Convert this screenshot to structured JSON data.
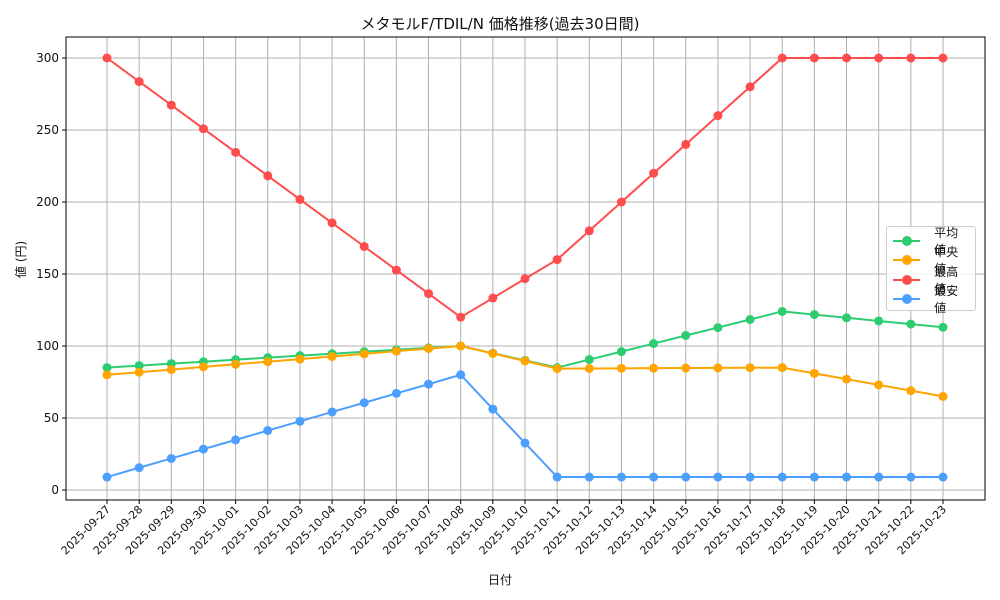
{
  "chart_data": {
    "type": "line",
    "title": "メタモルF/TDIL/N 価格推移(過去30日間)",
    "xlabel": "日付",
    "ylabel": "値 (円)",
    "ylim": [
      -7,
      314
    ],
    "yticks": [
      0,
      50,
      100,
      150,
      200,
      250,
      300
    ],
    "grid": true,
    "legend_position": "center right",
    "categories": [
      "2025-09-27",
      "2025-09-28",
      "2025-09-29",
      "2025-09-30",
      "2025-10-01",
      "2025-10-02",
      "2025-10-03",
      "2025-10-04",
      "2025-10-05",
      "2025-10-06",
      "2025-10-07",
      "2025-10-08",
      "2025-10-09",
      "2025-10-10",
      "2025-10-11",
      "2025-10-12",
      "2025-10-13",
      "2025-10-14",
      "2025-10-15",
      "2025-10-16",
      "2025-10-17",
      "2025-10-18",
      "2025-10-19",
      "2025-10-20",
      "2025-10-21",
      "2025-10-22",
      "2025-10-23"
    ],
    "series": [
      {
        "name": "平均値",
        "color": "#2ecc71",
        "values": [
          85,
          86.4,
          87.8,
          89.1,
          90.5,
          91.9,
          93.3,
          94.6,
          96,
          97.4,
          98.7,
          100,
          95,
          90,
          85,
          90.6,
          96.1,
          101.7,
          107.3,
          112.8,
          118.4,
          124,
          121.8,
          119.6,
          117.4,
          115.2,
          113
        ]
      },
      {
        "name": "中央値",
        "color": "#ffa500",
        "values": [
          80,
          81.8,
          83.6,
          85.5,
          87.3,
          89.1,
          90.9,
          92.7,
          94.5,
          96.4,
          98.2,
          100,
          94.8,
          89.6,
          84.3,
          84.4,
          84.5,
          84.6,
          84.7,
          84.8,
          84.9,
          85,
          81,
          77,
          73,
          69,
          65
        ]
      },
      {
        "name": "最高値",
        "color": "#ff4d4d",
        "values": [
          300,
          283.6,
          267.3,
          250.9,
          234.5,
          218.2,
          201.8,
          185.5,
          169.1,
          152.7,
          136.4,
          120,
          133.3,
          146.7,
          160,
          180,
          200,
          220,
          240,
          260,
          280,
          300,
          300,
          300,
          300,
          300,
          300
        ]
      },
      {
        "name": "最安値",
        "color": "#4d9fff",
        "values": [
          9,
          15.5,
          21.9,
          28.4,
          34.8,
          41.3,
          47.7,
          54.2,
          60.6,
          67.1,
          73.5,
          80,
          56.2,
          32.6,
          9,
          9,
          9,
          9,
          9,
          9,
          9,
          9,
          9,
          9,
          9,
          9,
          9
        ]
      }
    ]
  },
  "legend": {
    "items": [
      {
        "label": "平均値",
        "color": "#2ecc71"
      },
      {
        "label": "中央値",
        "color": "#ffa500"
      },
      {
        "label": "最高値",
        "color": "#ff4d4d"
      },
      {
        "label": "最安値",
        "color": "#4d9fff"
      }
    ]
  }
}
